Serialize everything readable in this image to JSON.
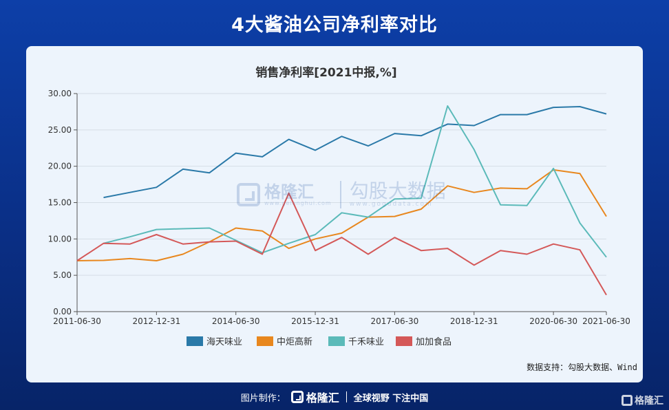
{
  "page": {
    "title": "4大酱油公司净利率对比"
  },
  "chart_data": {
    "type": "line",
    "title": "销售净利率[2021中报,%]",
    "x": [
      "2011-06-30",
      "2011-12-31",
      "2012-06-30",
      "2012-12-31",
      "2013-06-30",
      "2013-12-31",
      "2014-06-30",
      "2014-12-31",
      "2015-06-30",
      "2015-12-31",
      "2016-06-30",
      "2016-12-31",
      "2017-06-30",
      "2017-12-31",
      "2018-06-30",
      "2018-12-31",
      "2019-06-30",
      "2019-12-31",
      "2020-06-30",
      "2020-12-31",
      "2021-06-30"
    ],
    "x_tick_labels": [
      "2011-06-30",
      "2012-12-31",
      "2014-06-30",
      "2015-12-31",
      "2017-06-30",
      "2018-12-31",
      "2020-06-30",
      "2021-06-30"
    ],
    "ylim": [
      0,
      30
    ],
    "y_ticks": [
      "0.00",
      "5.00",
      "10.00",
      "15.00",
      "20.00",
      "25.00",
      "30.00"
    ],
    "grid": true,
    "legend_position": "bottom",
    "series": [
      {
        "name": "海天味业",
        "color": "#2a79a8",
        "values": [
          null,
          15.7,
          16.4,
          17.1,
          19.6,
          19.1,
          21.8,
          21.3,
          23.7,
          22.2,
          24.1,
          22.8,
          24.5,
          24.2,
          25.8,
          25.6,
          27.1,
          27.1,
          28.1,
          28.2,
          27.2
        ]
      },
      {
        "name": "中炬高新",
        "color": "#e8871e",
        "values": [
          7.0,
          7.05,
          7.3,
          7.0,
          7.9,
          9.6,
          11.5,
          11.1,
          8.7,
          10.0,
          10.8,
          13.0,
          13.1,
          14.1,
          17.3,
          16.4,
          17.0,
          16.9,
          19.5,
          19.0,
          13.1
        ]
      },
      {
        "name": "千禾味业",
        "color": "#5bbab9",
        "values": [
          null,
          9.4,
          10.3,
          11.3,
          11.4,
          11.5,
          9.8,
          8.1,
          9.4,
          10.6,
          13.6,
          13.0,
          15.5,
          15.6,
          28.3,
          22.3,
          14.7,
          14.6,
          19.7,
          12.2,
          7.5
        ]
      },
      {
        "name": "加加食品",
        "color": "#d45858",
        "values": [
          7.0,
          9.4,
          9.3,
          10.6,
          9.3,
          9.6,
          9.7,
          7.9,
          16.3,
          8.4,
          10.2,
          7.9,
          10.2,
          8.4,
          8.7,
          6.4,
          8.4,
          7.9,
          9.3,
          8.5,
          2.3
        ]
      }
    ]
  },
  "watermark": {
    "brand": "格隆汇",
    "url": "www.gelonghui.com",
    "slogan": "勾股大数据",
    "url2": "www.gogudata.com"
  },
  "source_text": "数据支持：勾股大数据、Wind",
  "footer": {
    "made_by": "图片制作：",
    "brand": "格隆汇",
    "slogan": "全球视野 下注中国"
  },
  "corner": {
    "brand": "格隆汇"
  }
}
